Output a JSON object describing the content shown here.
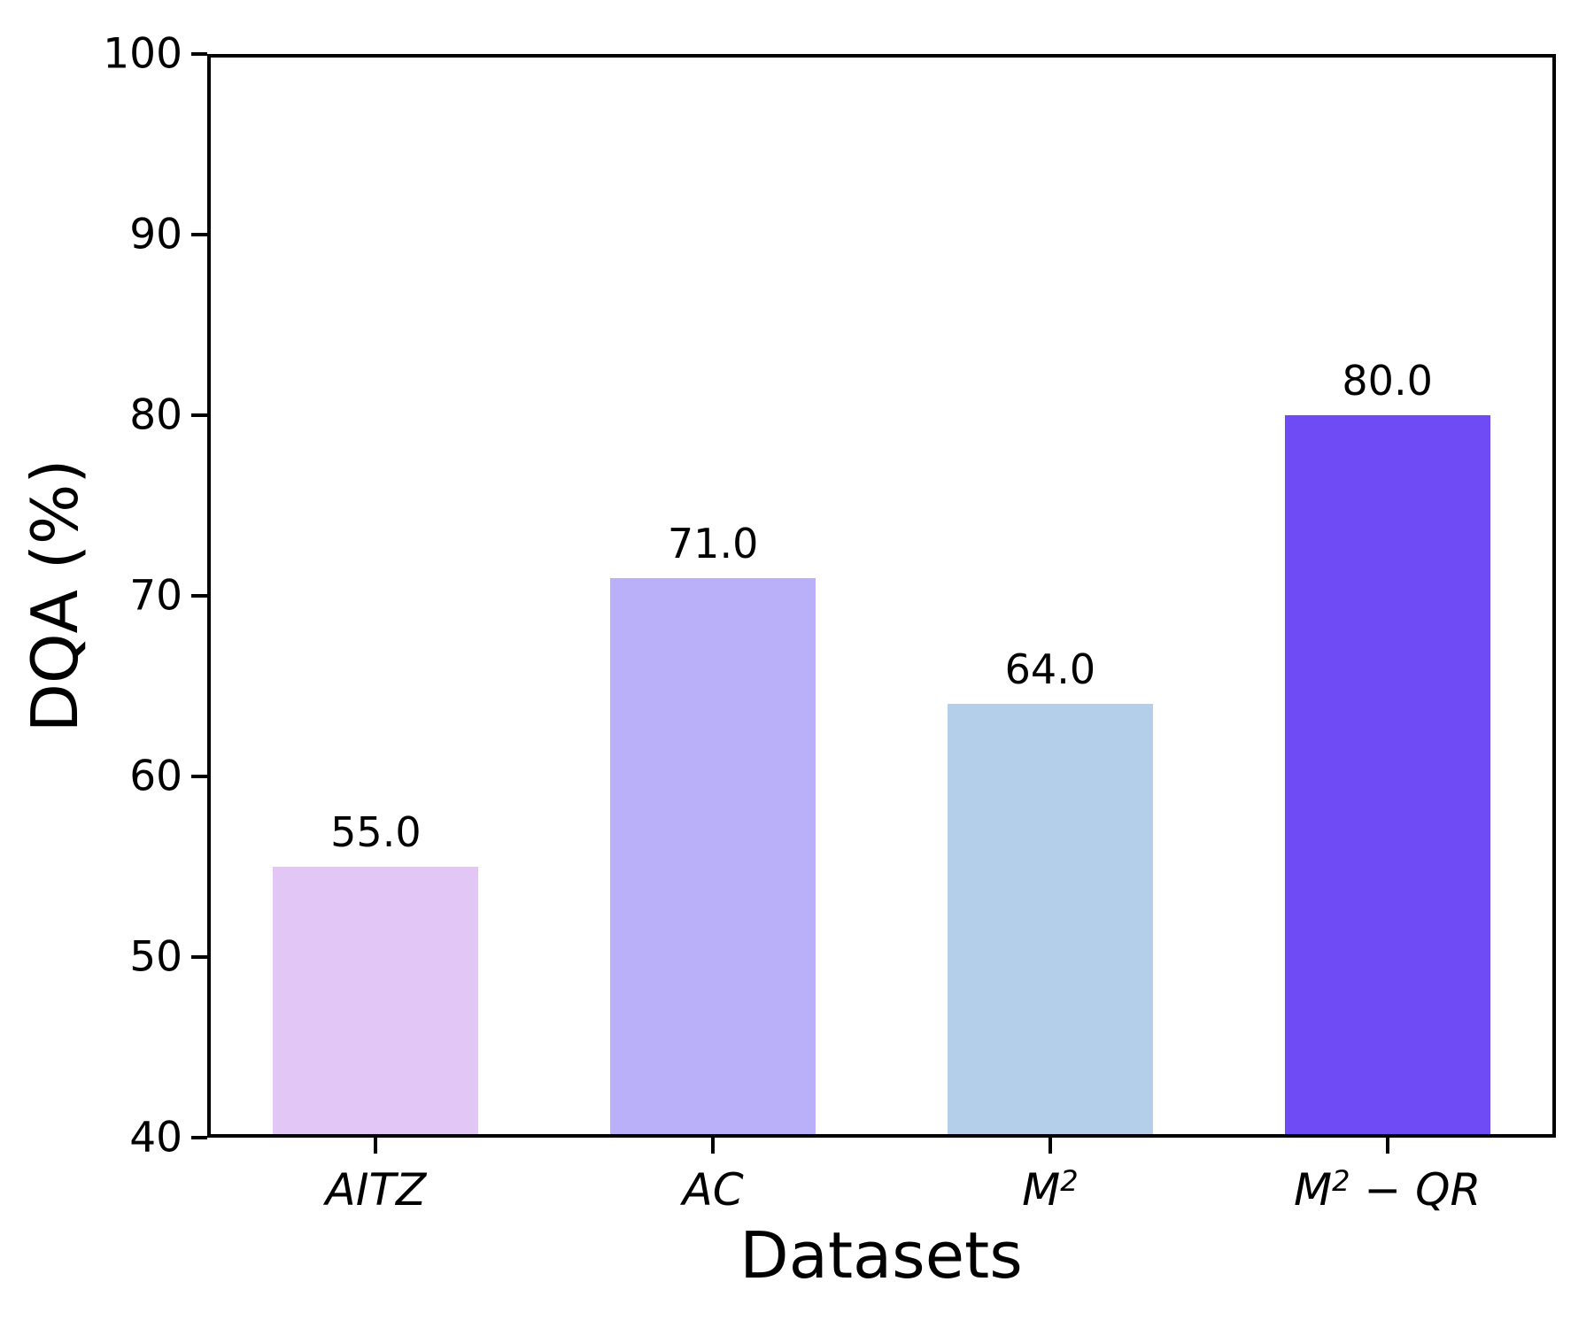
{
  "chart_data": {
    "type": "bar",
    "categories": [
      "AITZ",
      "AC",
      "M²",
      "M² − QR"
    ],
    "values": [
      55.0,
      71.0,
      64.0,
      80.0
    ],
    "value_labels": [
      "55.0",
      "71.0",
      "64.0",
      "80.0"
    ],
    "bar_colors": [
      "#E2C6F5",
      "#BAB0FA",
      "#B4CFE9",
      "#6F4BF5"
    ],
    "title": "",
    "xlabel": "Datasets",
    "ylabel": "DQA (%)",
    "ylim": [
      40,
      100
    ],
    "yticks": [
      40,
      50,
      60,
      70,
      80,
      90,
      100
    ],
    "grid": false,
    "legend_position": "none",
    "spine_color": "#000000",
    "text_color": "#000000"
  }
}
